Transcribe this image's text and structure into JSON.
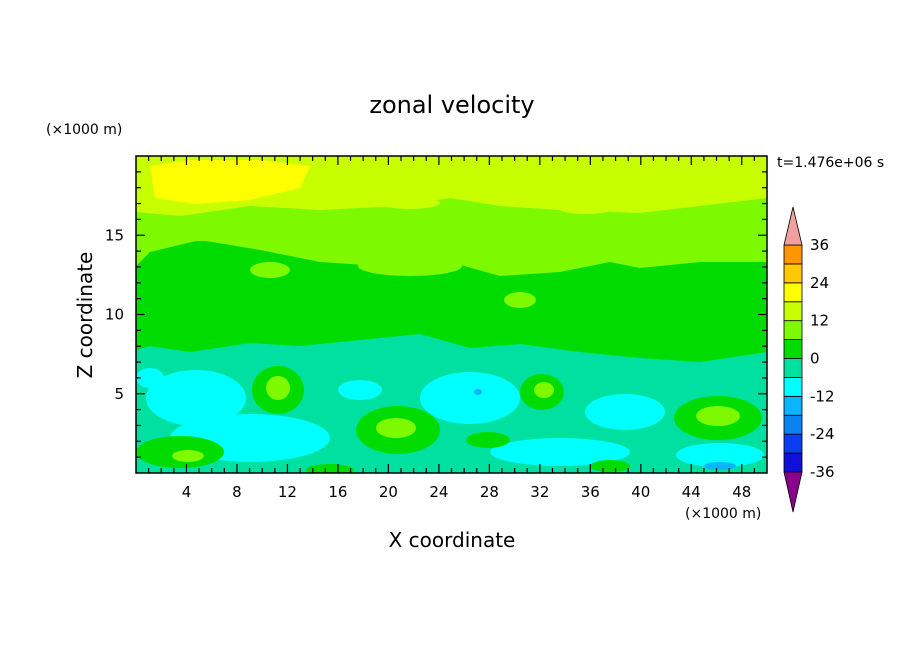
{
  "chart_data": {
    "type": "heatmap",
    "title": "zonal velocity",
    "xlabel": "X coordinate",
    "ylabel": "Z coordinate",
    "x_unit": "(×1000 m)",
    "y_unit": "(×1000 m)",
    "time_label": "t=1.476e+06 s",
    "xlim": [
      0,
      50
    ],
    "ylim": [
      0,
      20
    ],
    "x_ticks": [
      4,
      8,
      12,
      16,
      20,
      24,
      28,
      32,
      36,
      40,
      44,
      48
    ],
    "y_ticks": [
      5,
      10,
      15
    ],
    "colorbar": {
      "levels": [
        -42,
        -36,
        -30,
        -24,
        -18,
        -12,
        -6,
        0,
        6,
        12,
        18,
        24,
        30,
        36,
        42
      ],
      "tick_values": [
        -36,
        -24,
        -12,
        0,
        12,
        24,
        36
      ],
      "colors": [
        "#5a00a8",
        "#1a0aa8",
        "#1010d8",
        "#0a3cf0",
        "#0a82f0",
        "#0ab4ff",
        "#00ffff",
        "#00e0a0",
        "#00dc00",
        "#7dfa00",
        "#c8ff00",
        "#ffff00",
        "#ffc800",
        "#ff9600",
        "#ff6400",
        "#ff2000"
      ],
      "under_color": "#8b008b",
      "over_color": "#f0a0a0"
    }
  }
}
